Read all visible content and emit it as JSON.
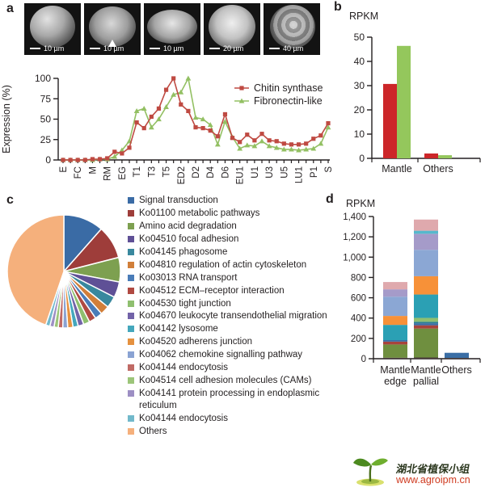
{
  "panels": {
    "a": "a",
    "b": "b",
    "c": "c",
    "d": "d"
  },
  "panel_a": {
    "micrographs": [
      {
        "scale": "10 µm",
        "arrowhead": false
      },
      {
        "scale": "10 µm",
        "arrowhead": true
      },
      {
        "scale": "10 µm",
        "arrowhead": false
      },
      {
        "scale": "20 µm",
        "arrowhead": false
      },
      {
        "scale": "40 µm",
        "arrowhead": false
      }
    ]
  },
  "watermark": {
    "cn_text": "湖北省植保小组",
    "url": "www.agroipm.cn"
  },
  "chart_data": [
    {
      "id": "expression-line",
      "type": "line",
      "ylabel": "Expression (%)",
      "ylim": [
        0,
        100
      ],
      "yticks": [
        0,
        25,
        50,
        75,
        100
      ],
      "x_labels": [
        "E",
        "FC",
        "M",
        "RM",
        "EG",
        "T1",
        "T3",
        "T5",
        "ED2",
        "D2",
        "D4",
        "D6",
        "EU1",
        "U1",
        "U3",
        "U5",
        "LU1",
        "P1",
        "S"
      ],
      "label_every": 2,
      "series": [
        {
          "name": "Chitin synthase",
          "color": "#bf4a42",
          "marker": "square",
          "values": [
            0,
            0,
            0,
            0,
            1,
            1,
            2,
            10,
            8,
            15,
            46,
            39,
            53,
            63,
            86,
            100,
            68,
            60,
            40,
            39,
            36,
            29,
            56,
            27,
            22,
            31,
            24,
            32,
            24,
            23,
            20,
            19,
            19,
            20,
            26,
            30,
            45
          ]
        },
        {
          "name": "Fibronectin-like",
          "color": "#93c063",
          "marker": "triangle",
          "values": [
            0,
            0,
            0,
            0,
            0,
            1,
            1,
            4,
            12,
            23,
            60,
            63,
            40,
            50,
            65,
            80,
            83,
            100,
            52,
            50,
            43,
            19,
            47,
            28,
            14,
            18,
            17,
            23,
            17,
            15,
            13,
            13,
            12,
            13,
            14,
            20,
            40
          ]
        }
      ],
      "legend_position": "top-right",
      "grid": false
    },
    {
      "id": "rpkm-bar",
      "type": "bar",
      "ylabel": "RPKM",
      "ylim": [
        0,
        50
      ],
      "yticks": [
        0,
        10,
        20,
        30,
        40,
        50
      ],
      "categories": [
        "Mantle",
        "Others"
      ],
      "series": [
        {
          "name": "Chitin synthase",
          "color": "#cc2629",
          "values": [
            30.7,
            2.0
          ]
        },
        {
          "name": "Fibronectin-like",
          "color": "#94c75c",
          "values": [
            46.4,
            1.3
          ]
        }
      ],
      "grid": false
    },
    {
      "id": "kegg-pie",
      "type": "pie",
      "slices": [
        {
          "label": "Signal transduction",
          "color": "#3a6ba5",
          "pct": 11.5
        },
        {
          "label": "Ko01100 metabolic pathways",
          "color": "#9e3d3a",
          "pct": 9.5
        },
        {
          "label": "Amino acid degradation",
          "color": "#7da050",
          "pct": 7.0
        },
        {
          "label": "Ko04510 focal adhesion",
          "color": "#5f5096",
          "pct": 4.5
        },
        {
          "label": "Ko04145 phagosome",
          "color": "#39889e",
          "pct": 3.3
        },
        {
          "label": "Ko04810 regulation of actin cytoskeleton",
          "color": "#d17f3a",
          "pct": 2.6
        },
        {
          "label": "Ko03013 RNA transport",
          "color": "#4a7cb8",
          "pct": 2.1
        },
        {
          "label": "Ko04512 ECM–receptor interaction",
          "color": "#b04a42",
          "pct": 2.0
        },
        {
          "label": "Ko04530 tight junction",
          "color": "#8fbf6f",
          "pct": 1.8
        },
        {
          "label": "Ko04670 leukocyte transendothelial migration",
          "color": "#7263a8",
          "pct": 1.6
        },
        {
          "label": "Ko04142 lysosome",
          "color": "#44a7bc",
          "pct": 1.5
        },
        {
          "label": "Ko04520 adherens junction",
          "color": "#e5913f",
          "pct": 1.5
        },
        {
          "label": "Ko04062 chemokine signalling pathway",
          "color": "#8aa3d3",
          "pct": 1.4
        },
        {
          "label": "Ko04144 endocytosis",
          "color": "#c06a65",
          "pct": 1.3
        },
        {
          "label": "Ko04514 cell adhesion molecules (CAMs)",
          "color": "#9cc579",
          "pct": 1.2
        },
        {
          "label": "Ko04141 protein processing in endoplasmic reticulum",
          "color": "#9d8fc4",
          "pct": 1.2
        },
        {
          "label": "Ko04144 endocytosis",
          "color": "#72b9cb",
          "pct": 1.2
        },
        {
          "label": "Others",
          "color": "#f5b07c",
          "pct": 44.8
        }
      ],
      "legend_position": "right"
    },
    {
      "id": "rpkm-stacked",
      "type": "bar-stacked",
      "ylabel": "RPKM",
      "ylim": [
        0,
        1400
      ],
      "ytick_values": [
        0,
        200,
        400,
        600,
        800,
        1000,
        1200,
        1400
      ],
      "ytick_labels": [
        "0",
        "200",
        "400",
        "600",
        "800",
        "1,000",
        "1,200",
        "1,400"
      ],
      "categories": [
        [
          "Mantle",
          "edge"
        ],
        [
          "Mantle",
          "pallial"
        ],
        [
          "Others"
        ]
      ],
      "totals": [
        755,
        1370,
        58
      ],
      "stacks": [
        [
          [
            "#4a3c3a",
            10
          ],
          [
            "#6f8f3f",
            130
          ],
          [
            "#a8433c",
            28
          ],
          [
            "#3a6ea5",
            15
          ],
          [
            "#2ba0b4",
            150
          ],
          [
            "#f79138",
            88
          ],
          [
            "#8ba7d4",
            190
          ],
          [
            "#a59bc9",
            72
          ],
          [
            "#dfa9ad",
            72
          ]
        ],
        [
          [
            "#4a3c3a",
            12
          ],
          [
            "#6f8f3f",
            285
          ],
          [
            "#a8433c",
            32
          ],
          [
            "#3a6ea5",
            20
          ],
          [
            "#2a7d8f",
            15
          ],
          [
            "#8fbf6f",
            38
          ],
          [
            "#2ba0b4",
            230
          ],
          [
            "#f79138",
            180
          ],
          [
            "#8ba7d4",
            260
          ],
          [
            "#a59bc9",
            158
          ],
          [
            "#56b8cc",
            30
          ],
          [
            "#dfa9ad",
            110
          ]
        ],
        [
          [
            "#4a3c3a",
            8
          ],
          [
            "#3a6ea5",
            50
          ]
        ]
      ],
      "grid": false
    }
  ]
}
